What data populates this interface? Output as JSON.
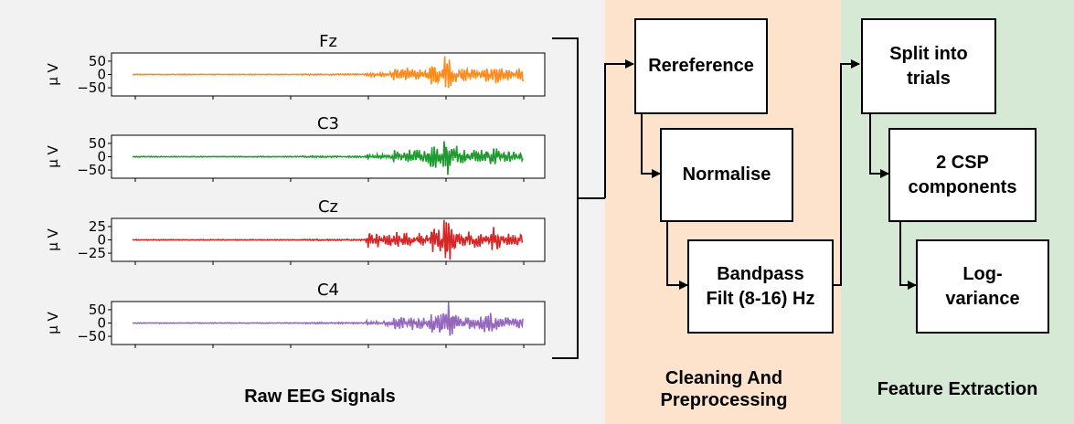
{
  "sections": {
    "raw": {
      "title": "Raw EEG Signals",
      "background": "#f2f2f2"
    },
    "cleaning": {
      "title_line1": "Cleaning And",
      "title_line2": "Preprocessing",
      "background": "#fde3cc"
    },
    "features": {
      "title": "Feature Extraction",
      "background": "#d6e9d4"
    }
  },
  "y_axis_label": "μ V",
  "channels": [
    {
      "name": "Fz",
      "color": "#ff8c1a",
      "ticks": [
        "50",
        "0",
        "−50"
      ],
      "scale": 50
    },
    {
      "name": "C3",
      "color": "#1e9a2e",
      "ticks": [
        "50",
        "0",
        "−50"
      ],
      "scale": 50
    },
    {
      "name": "Cz",
      "color": "#d62728",
      "ticks": [
        "25",
        "0",
        "−25"
      ],
      "scale": 25
    },
    {
      "name": "C4",
      "color": "#9467bd",
      "ticks": [
        "50",
        "0",
        "−50"
      ],
      "scale": 50
    }
  ],
  "cleaning_steps": [
    {
      "line1": "Rereference",
      "line2": ""
    },
    {
      "line1": "Normalise",
      "line2": ""
    },
    {
      "line1": "Bandpass",
      "line2": "Filt (8-16) Hz"
    }
  ],
  "feature_steps": [
    {
      "line1": "Split into",
      "line2": "trials"
    },
    {
      "line1": "2 CSP",
      "line2": "components"
    },
    {
      "line1": "Log-",
      "line2": "variance"
    }
  ]
}
